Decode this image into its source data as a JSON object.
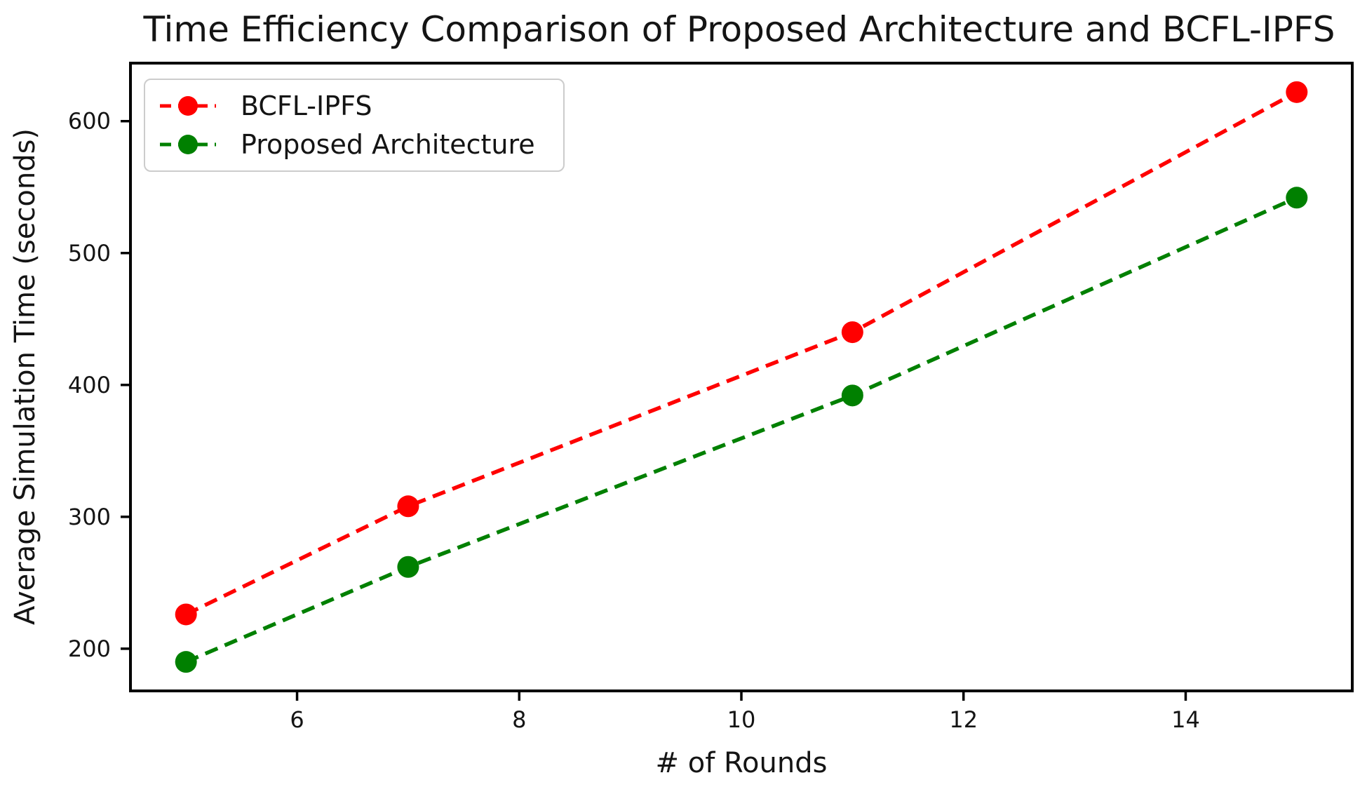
{
  "chart_data": {
    "type": "line",
    "title": "Time Efficiency Comparison of Proposed Architecture and BCFL-IPFS",
    "xlabel": "# of Rounds",
    "ylabel": "Average Simulation Time (seconds)",
    "x": [
      5,
      7,
      11,
      15
    ],
    "series": [
      {
        "name": "BCFL-IPFS",
        "color": "#ff0000",
        "values": [
          226,
          308,
          440,
          622
        ]
      },
      {
        "name": "Proposed Architecture",
        "color": "#008000",
        "values": [
          190,
          262,
          392,
          542
        ]
      }
    ],
    "xticks": [
      6,
      8,
      10,
      12,
      14
    ],
    "yticks": [
      200,
      300,
      400,
      500,
      600
    ],
    "xlim": [
      4.5,
      15.5
    ],
    "ylim": [
      168,
      644
    ],
    "grid": false,
    "legend_position": "upper left",
    "line_style": "dashed",
    "marker": "circle",
    "axis_color": "#000000",
    "text_color": "#141414"
  }
}
